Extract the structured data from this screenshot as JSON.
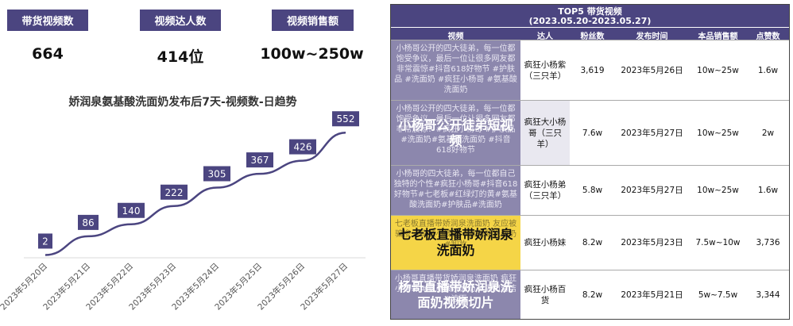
{
  "stats": [
    {
      "label": "带货视频数",
      "value": "664"
    },
    {
      "label": "视频达人数",
      "value": "414位"
    },
    {
      "label": "视频销售额",
      "value": "100w~250w"
    }
  ],
  "chart_title": "娇润泉氨基酸洗面奶发布后7天-视频数-日趋势",
  "chart_data": {
    "type": "line",
    "title": "娇润泉氨基酸洗面奶发布后7天-视频数-日趋势",
    "categories": [
      "2023年5月20日",
      "2023年5月21日",
      "2023年5月22日",
      "2023年5月23日",
      "2023年5月24日",
      "2023年5月25日",
      "2023年5月26日",
      "2023年5月27日"
    ],
    "values": [
      2,
      86,
      140,
      222,
      305,
      367,
      426,
      552
    ],
    "data_labels": [
      "2",
      "86",
      "140",
      "222",
      "305",
      "367",
      "426",
      "552"
    ],
    "line_color": "#4b4580",
    "ylim": [
      0,
      600
    ],
    "grid": false
  },
  "table": {
    "title_line1": "TOP5 带货视频",
    "title_line2": "(2023.05.20-2023.05.27)",
    "headers": [
      "视频",
      "达人",
      "粉丝数",
      "发布时间",
      "本品销售额",
      "点赞数"
    ],
    "rows": [
      {
        "video_text": "小杨哥公开的四大徒弟，每一位都饱受争议，最后一位让很多网友都非常震惊#抖音618好物节 #护肤品 #洗面奶 #疯狂小杨哥 #氨基酸洗面奶",
        "overlay": "",
        "author": "疯狂小杨紫（三只羊）",
        "fans": "3,619",
        "date": "2023年5月26日",
        "sales": "10w~25w",
        "likes": "1.6w"
      },
      {
        "video_text": "小杨哥公开的四大徒弟，每一位都饱受争议，最后一位让很多网友都非常震惊！#疯狂小杨哥 #护肤品#洗面奶#氨基酸洗面奶 #抖音618好物节",
        "overlay": "小杨哥公开徒弟短视频",
        "author": "疯狂大小杨哥（三只羊）",
        "fans": "7.6w",
        "date": "2023年5月27日",
        "sales": "10w~25w",
        "likes": "2w"
      },
      {
        "video_text": "小杨哥的四大徒弟，每一位都自己独特的个性#疯狂小杨哥#抖音618好物节#七老板#红绿灯的黄#氨基酸洗面奶#护肤品#洗面奶",
        "overlay": "",
        "author": "疯狂小杨弟（三只羊）",
        "fans": "5.8w",
        "date": "2023年5月27日",
        "sales": "10w~25w",
        "likes": "1.6w"
      },
      {
        "video_text": "七老板直播带娇润泉洗面奶 友应被骗惨 #疯狂小杨哥 #氨基酸洗面奶 #卸妆",
        "overlay": "七老板直播带娇润泉洗面奶",
        "author": "疯狂小杨妹",
        "fans": "8.2w",
        "date": "2023年5月23日",
        "sales": "7.5w~10w",
        "likes": "3,736"
      },
      {
        "video_text": "小杨哥直播带货娇润泉洗面奶 疯狂小杨哥 #氨基酸洗面奶 #温和清洁 #洁面",
        "overlay": "杨哥直播带娇润泉洗面奶视频切片",
        "author": "疯狂小杨百货",
        "fans": "8.2w",
        "date": "2023年5月21日",
        "sales": "5w~7.5w",
        "likes": "3,344"
      }
    ]
  }
}
